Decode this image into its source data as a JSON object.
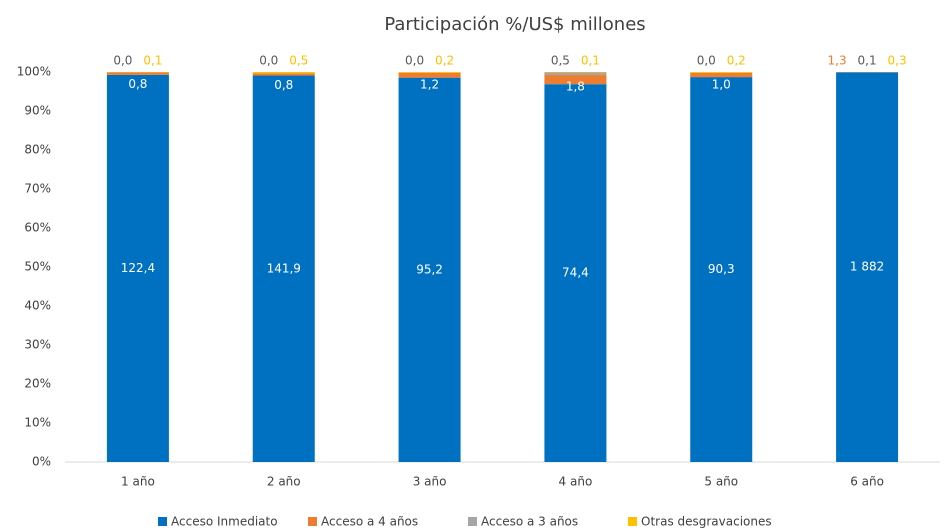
{
  "chart_data": {
    "type": "bar",
    "stacking": "percent",
    "title": "Participación %/US$ millones",
    "categories": [
      "1 año",
      "2 año",
      "3 año",
      "4 año",
      "5 año",
      "6 año"
    ],
    "series": [
      {
        "name": "Acceso Inmediato",
        "color": "#0070c0",
        "values": [
          122.4,
          141.9,
          95.2,
          74.4,
          90.3,
          1882
        ],
        "value_labels": [
          "122,4",
          "141,9",
          "95,2",
          "74,4",
          "90,3",
          "1 882"
        ]
      },
      {
        "name": "Acceso a 4 años",
        "color": "#ed7d31",
        "values": [
          0.8,
          0.8,
          1.2,
          1.8,
          1.0,
          1.3
        ],
        "value_labels": [
          "0,8",
          "0,8",
          "1,2",
          "1,8",
          "1,0",
          "1,3"
        ]
      },
      {
        "name": "Acceso a 3 años",
        "color": "#a5a5a5",
        "values": [
          0.0,
          0.0,
          0.0,
          0.5,
          0.0,
          0.1
        ],
        "value_labels": [
          "0,0",
          "0,0",
          "0,0",
          "0,5",
          "0,0",
          "0,1"
        ]
      },
      {
        "name": "Otras desgravaciones",
        "color": "#ffc000",
        "values": [
          0.1,
          0.5,
          0.2,
          0.1,
          0.2,
          0.3
        ],
        "value_labels": [
          "0,1",
          "0,5",
          "0,2",
          "0,1",
          "0,2",
          "0,3"
        ]
      }
    ],
    "ylim": [
      0,
      100
    ],
    "yticks": [
      {
        "value": 0,
        "label": "0%"
      },
      {
        "value": 10,
        "label": "10%"
      },
      {
        "value": 20,
        "label": "20%"
      },
      {
        "value": 30,
        "label": "30%"
      },
      {
        "value": 40,
        "label": "40%"
      },
      {
        "value": 50,
        "label": "50%"
      },
      {
        "value": 60,
        "label": "60%"
      },
      {
        "value": 70,
        "label": "70%"
      },
      {
        "value": 80,
        "label": "80%"
      },
      {
        "value": 90,
        "label": "90%"
      },
      {
        "value": 100,
        "label": "100%"
      }
    ],
    "legend": "bottom"
  }
}
